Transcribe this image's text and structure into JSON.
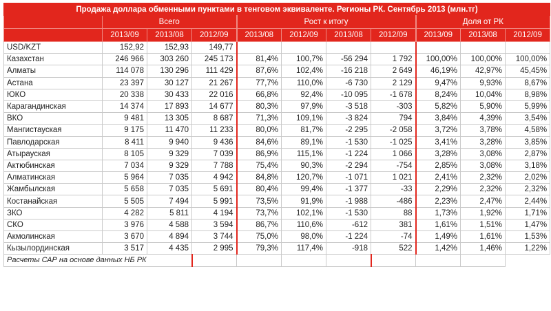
{
  "table": {
    "title": "Продажа доллара обменными пунктами в тенговом эквиваленте. Регионы РК. Сентябрь 2013 (млн.тг)",
    "groups": [
      "Всего",
      "Рост к итогу",
      "Доля от РК"
    ],
    "subheaders": [
      "2013/09",
      "2013/08",
      "2012/09",
      "2013/08",
      "2012/09",
      "2013/08",
      "2012/09",
      "2013/09",
      "2013/08",
      "2012/09"
    ],
    "rows": [
      [
        "USD/KZT",
        "152,92",
        "152,93",
        "149,77",
        null,
        null,
        null,
        null,
        null,
        null,
        null
      ],
      [
        "Казахстан",
        "246 966",
        "303 260",
        "245 173",
        "81,4%",
        "100,7%",
        "-56 294",
        "1 792",
        "100,00%",
        "100,00%",
        "100,00%"
      ],
      [
        "Алматы",
        "114 078",
        "130 296",
        "111 429",
        "87,6%",
        "102,4%",
        "-16 218",
        "2 649",
        "46,19%",
        "42,97%",
        "45,45%"
      ],
      [
        "Астана",
        "23 397",
        "30 127",
        "21 267",
        "77,7%",
        "110,0%",
        "-6 730",
        "2 129",
        "9,47%",
        "9,93%",
        "8,67%"
      ],
      [
        "ЮКО",
        "20 338",
        "30 433",
        "22 016",
        "66,8%",
        "92,4%",
        "-10 095",
        "-1 678",
        "8,24%",
        "10,04%",
        "8,98%"
      ],
      [
        "Карагандинская",
        "14 374",
        "17 893",
        "14 677",
        "80,3%",
        "97,9%",
        "-3 518",
        "-303",
        "5,82%",
        "5,90%",
        "5,99%"
      ],
      [
        "ВКО",
        "9 481",
        "13 305",
        "8 687",
        "71,3%",
        "109,1%",
        "-3 824",
        "794",
        "3,84%",
        "4,39%",
        "3,54%"
      ],
      [
        "Мангистауская",
        "9 175",
        "11 470",
        "11 233",
        "80,0%",
        "81,7%",
        "-2 295",
        "-2 058",
        "3,72%",
        "3,78%",
        "4,58%"
      ],
      [
        "Павлодарская",
        "8 411",
        "9 940",
        "9 436",
        "84,6%",
        "89,1%",
        "-1 530",
        "-1 025",
        "3,41%",
        "3,28%",
        "3,85%"
      ],
      [
        "Атырауская",
        "8 105",
        "9 329",
        "7 039",
        "86,9%",
        "115,1%",
        "-1 224",
        "1 066",
        "3,28%",
        "3,08%",
        "2,87%"
      ],
      [
        "Актюбинская",
        "7 034",
        "9 329",
        "7 788",
        "75,4%",
        "90,3%",
        "-2 294",
        "-754",
        "2,85%",
        "3,08%",
        "3,18%"
      ],
      [
        "Алматинская",
        "5 964",
        "7 035",
        "4 942",
        "84,8%",
        "120,7%",
        "-1 071",
        "1 021",
        "2,41%",
        "2,32%",
        "2,02%"
      ],
      [
        "Жамбылская",
        "5 658",
        "7 035",
        "5 691",
        "80,4%",
        "99,4%",
        "-1 377",
        "-33",
        "2,29%",
        "2,32%",
        "2,32%"
      ],
      [
        "Костанайская",
        "5 505",
        "7 494",
        "5 991",
        "73,5%",
        "91,9%",
        "-1 988",
        "-486",
        "2,23%",
        "2,47%",
        "2,44%"
      ],
      [
        "ЗКО",
        "4 282",
        "5 811",
        "4 194",
        "73,7%",
        "102,1%",
        "-1 530",
        "88",
        "1,73%",
        "1,92%",
        "1,71%"
      ],
      [
        "СКО",
        "3 976",
        "4 588",
        "3 594",
        "86,7%",
        "110,6%",
        "-612",
        "381",
        "1,61%",
        "1,51%",
        "1,47%"
      ],
      [
        "Акмолинская",
        "3 670",
        "4 894",
        "3 744",
        "75,0%",
        "98,0%",
        "-1 224",
        "-74",
        "1,49%",
        "1,61%",
        "1,53%"
      ],
      [
        "Кызылординская",
        "3 517",
        "4 435",
        "2 995",
        "79,3%",
        "117,4%",
        "-918",
        "522",
        "1,42%",
        "1,46%",
        "1,22%"
      ]
    ],
    "footer": "Расчеты САР на основе данных НБ РК"
  }
}
